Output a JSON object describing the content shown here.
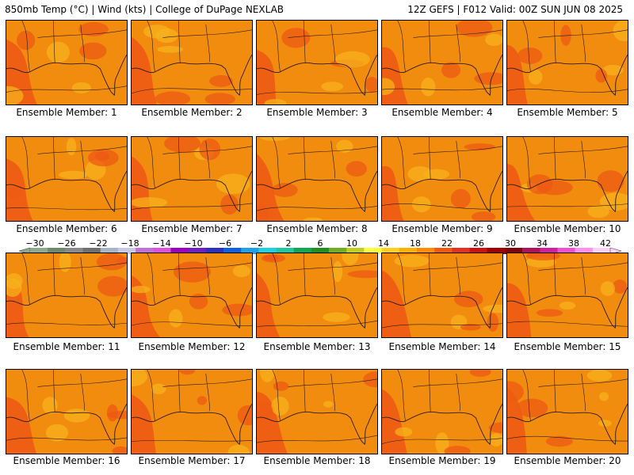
{
  "header": {
    "left": "850mb Temp (°C) | Wind (kts) | College of DuPage NEXLAB",
    "right": "12Z GEFS | F012 Valid: 00Z SUN JUN 08 2025"
  },
  "panels": [
    {
      "label": "Ensemble Member: 1"
    },
    {
      "label": "Ensemble Member: 2"
    },
    {
      "label": "Ensemble Member: 3"
    },
    {
      "label": "Ensemble Member: 4"
    },
    {
      "label": "Ensemble Member: 5"
    },
    {
      "label": "Ensemble Member: 6"
    },
    {
      "label": "Ensemble Member: 7"
    },
    {
      "label": "Ensemble Member: 8"
    },
    {
      "label": "Ensemble Member: 9"
    },
    {
      "label": "Ensemble Member: 10"
    },
    {
      "label": "Ensemble Member: 11"
    },
    {
      "label": "Ensemble Member: 12"
    },
    {
      "label": "Ensemble Member: 13"
    },
    {
      "label": "Ensemble Member: 14"
    },
    {
      "label": "Ensemble Member: 15"
    },
    {
      "label": "Ensemble Member: 16"
    },
    {
      "label": "Ensemble Member: 17"
    },
    {
      "label": "Ensemble Member: 18"
    },
    {
      "label": "Ensemble Member: 19"
    },
    {
      "label": "Ensemble Member: 20"
    }
  ],
  "colorbar": {
    "labels": [
      "−30",
      "−26",
      "−22",
      "−18",
      "−14",
      "−10",
      "−6",
      "−2",
      "2",
      "6",
      "10",
      "14",
      "18",
      "22",
      "26",
      "30",
      "34",
      "38",
      "42"
    ],
    "colors": [
      "#8fa98f",
      "#6e8a6e",
      "#8a8a8a",
      "#707070",
      "#a8b4c8",
      "#c8c8e8",
      "#c070d8",
      "#e050e0",
      "#a000c0",
      "#7020c0",
      "#3030c0",
      "#1060e0",
      "#20a0e8",
      "#20d0e0",
      "#20c8a0",
      "#10a850",
      "#209020",
      "#70b020",
      "#c0d020",
      "#ffff40",
      "#ffd020",
      "#ffb000",
      "#ff8c00",
      "#f05a10",
      "#e83020",
      "#d01010",
      "#a00000",
      "#800010",
      "#b01060",
      "#d020a0",
      "#f050d0",
      "#ff90f0",
      "#ffd0f8"
    ]
  },
  "map_colors": {
    "base": "#f28c0f",
    "warm": "#ee5a14",
    "cool": "#f7b11c",
    "coast": "#2a1a10"
  }
}
